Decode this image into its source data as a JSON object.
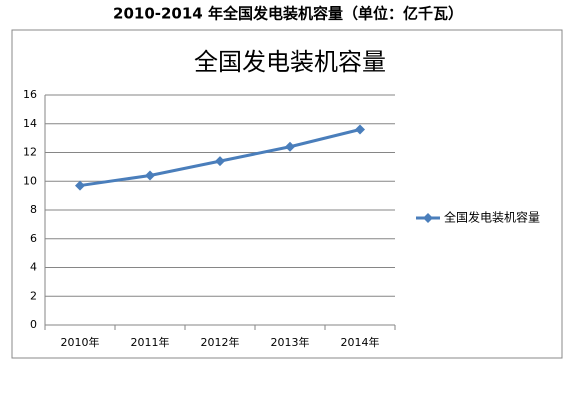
{
  "page_title": "2010-2014 年全国发电装机容量（单位：亿千瓦）",
  "chart_data": {
    "type": "line",
    "title": "全国发电装机容量",
    "categories": [
      "2010年",
      "2011年",
      "2012年",
      "2013年",
      "2014年"
    ],
    "series": [
      {
        "name": "全国发电装机容量",
        "color": "#4a7ebb",
        "values": [
          9.7,
          10.4,
          11.4,
          12.4,
          13.6
        ]
      }
    ],
    "ylim": [
      0,
      16
    ],
    "yticks": [
      0,
      2,
      4,
      6,
      8,
      10,
      12,
      14,
      16
    ],
    "grid": true,
    "legend": "right"
  }
}
